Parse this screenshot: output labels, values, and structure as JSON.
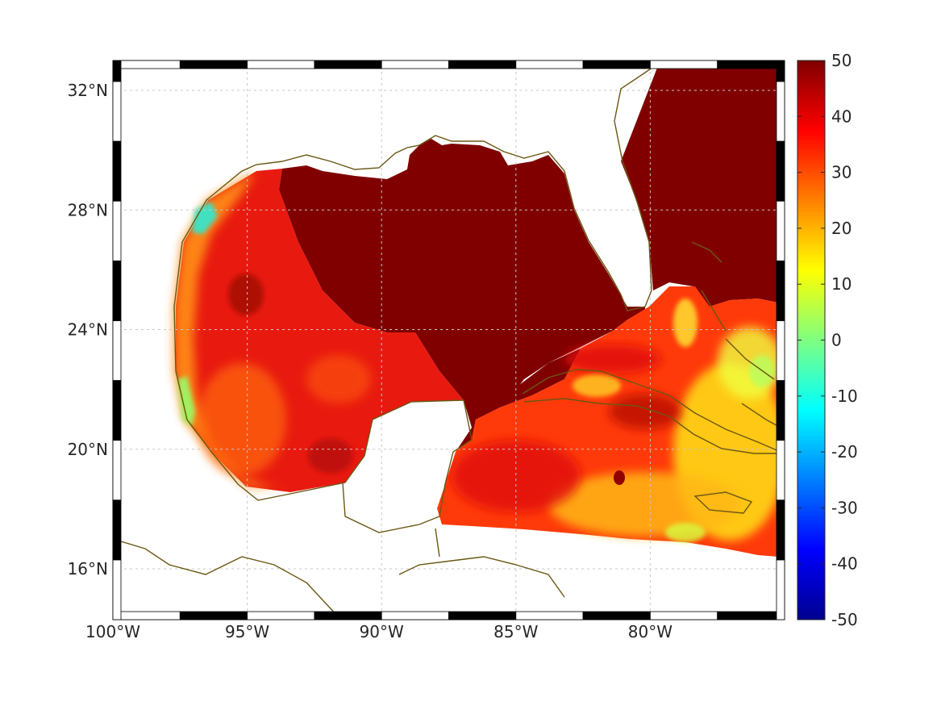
{
  "chart_data": {
    "type": "heatmap",
    "title": "",
    "xlabel": "",
    "ylabel": "",
    "projection": "map",
    "xlim": [
      -100,
      -75
    ],
    "ylim": [
      14.3,
      33
    ],
    "x_ticks": [
      {
        "value": -100,
        "label": "100°W"
      },
      {
        "value": -95,
        "label": "95°W"
      },
      {
        "value": -90,
        "label": "90°W"
      },
      {
        "value": -85,
        "label": "85°W"
      },
      {
        "value": -80,
        "label": "80°W"
      }
    ],
    "y_ticks": [
      {
        "value": 16,
        "label": "16°N"
      },
      {
        "value": 20,
        "label": "20°N"
      },
      {
        "value": 24,
        "label": "24°N"
      },
      {
        "value": 28,
        "label": "28°N"
      },
      {
        "value": 32,
        "label": "32°N"
      }
    ],
    "grid": true,
    "colormap": "jet",
    "colorbar": {
      "min": -50,
      "max": 50,
      "placement": "right",
      "ticks": [
        {
          "value": 50,
          "label": "50"
        },
        {
          "value": 40,
          "label": "40"
        },
        {
          "value": 30,
          "label": "30"
        },
        {
          "value": 20,
          "label": "20"
        },
        {
          "value": 10,
          "label": "10"
        },
        {
          "value": 0,
          "label": "0"
        },
        {
          "value": -10,
          "label": "-10"
        },
        {
          "value": -20,
          "label": "-20"
        },
        {
          "value": -30,
          "label": "-30"
        },
        {
          "value": -40,
          "label": "-40"
        },
        {
          "value": -50,
          "label": "-50"
        }
      ]
    },
    "field_regions": [
      {
        "region": "central and northeastern Gulf of Mexico, Florida Straits, Atlantic east of Florida",
        "value": 50
      },
      {
        "region": "western Gulf of Mexico",
        "value": 35
      },
      {
        "region": "south of western Cuba / Cayman basin",
        "value": 38
      },
      {
        "region": "Caribbean south of Cuba near Jamaica",
        "value": 20
      },
      {
        "region": "Bahamas banks",
        "value": 15
      },
      {
        "region": "Texas coast near 28°N",
        "value": 2
      },
      {
        "region": "Mexican coast near 22°N",
        "value": 8
      }
    ],
    "colors": {
      "coastline": "#6b5714",
      "grid": "#c8c8c8",
      "frame": "#000000"
    }
  }
}
